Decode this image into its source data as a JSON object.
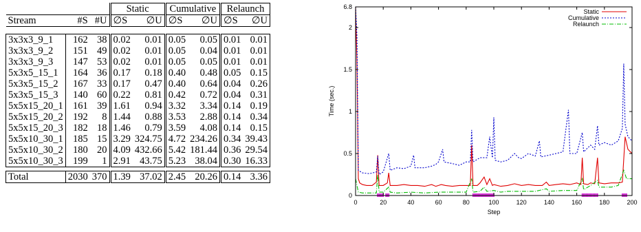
{
  "table": {
    "groups": {
      "static": "Static",
      "cumulative": "Cumulative",
      "relaunch": "Relaunch"
    },
    "columns": [
      "Stream",
      "#S",
      "#U",
      "∅S",
      "∅U",
      "∅S",
      "∅U",
      "∅S",
      "∅U"
    ],
    "rows": [
      [
        "3x3x3_9_1",
        "162",
        "38",
        "0.02",
        "0.01",
        "0.05",
        "0.05",
        "0.01",
        "0.01"
      ],
      [
        "3x3x3_9_2",
        "151",
        "49",
        "0.02",
        "0.01",
        "0.05",
        "0.04",
        "0.01",
        "0.01"
      ],
      [
        "3x3x3_9_3",
        "147",
        "53",
        "0.02",
        "0.01",
        "0.05",
        "0.05",
        "0.01",
        "0.01"
      ],
      [
        "5x3x5_15_1",
        "164",
        "36",
        "0.17",
        "0.18",
        "0.40",
        "0.48",
        "0.05",
        "0.15"
      ],
      [
        "5x3x5_15_2",
        "167",
        "33",
        "0.17",
        "0.47",
        "0.40",
        "0.64",
        "0.04",
        "0.26"
      ],
      [
        "5x3x5_15_3",
        "140",
        "60",
        "0.22",
        "0.81",
        "0.42",
        "0.72",
        "0.04",
        "0.31"
      ],
      [
        "5x5x15_20_1",
        "161",
        "39",
        "1.61",
        "0.94",
        "3.32",
        "3.34",
        "0.14",
        "0.19"
      ],
      [
        "5x5x15_20_2",
        "192",
        "8",
        "1.44",
        "0.88",
        "3.53",
        "2.88",
        "0.14",
        "0.34"
      ],
      [
        "5x5x15_20_3",
        "182",
        "18",
        "1.46",
        "0.79",
        "3.59",
        "4.08",
        "0.14",
        "0.15"
      ],
      [
        "5x5x10_30_1",
        "185",
        "15",
        "3.29",
        "324.75",
        "4.72",
        "234.26",
        "0.34",
        "39.43"
      ],
      [
        "5x5x10_30_2",
        "180",
        "20",
        "4.09",
        "432.66",
        "5.42",
        "181.44",
        "0.36",
        "29.54"
      ],
      [
        "5x5x10_30_3",
        "199",
        "1",
        "2.91",
        "43.75",
        "5.23",
        "38.04",
        "0.30",
        "16.33"
      ]
    ],
    "total": [
      "Total",
      "2030",
      "370",
      "1.39",
      "37.02",
      "2.45",
      "20.26",
      "0.14",
      "3.36"
    ]
  },
  "chart_data": {
    "type": "line",
    "xlabel": "Step",
    "ylabel": "Time (sec.)",
    "xlim": [
      0,
      200
    ],
    "ylim": [
      0,
      6.8
    ],
    "xticks": [
      0,
      20,
      40,
      60,
      80,
      100,
      120,
      140,
      160,
      180,
      200
    ],
    "xtick_labels": [
      "0",
      "20",
      "40",
      "60",
      "80",
      "100",
      "120",
      "140",
      "160",
      "180",
      "200"
    ],
    "yticks": [
      0,
      0.5,
      1,
      1.5,
      2,
      6.8
    ],
    "ytick_labels": [
      "0",
      "0.5",
      "1",
      "1.5",
      "2",
      "6.8"
    ],
    "y_axis_break": true,
    "grid": false,
    "legend_position": "top-right",
    "series": [
      {
        "name": "Static",
        "color": "#e00000",
        "dash": "solid",
        "points": [
          [
            0,
            6.8
          ],
          [
            1,
            1.6
          ],
          [
            2,
            0.2
          ],
          [
            3,
            0.15
          ],
          [
            5,
            0.13
          ],
          [
            8,
            0.12
          ],
          [
            12,
            0.12
          ],
          [
            15,
            0.16
          ],
          [
            16,
            0.48
          ],
          [
            17,
            0.12
          ],
          [
            20,
            0.12
          ],
          [
            23,
            0.15
          ],
          [
            24,
            0.27
          ],
          [
            25,
            0.12
          ],
          [
            30,
            0.12
          ],
          [
            35,
            0.13
          ],
          [
            40,
            0.12
          ],
          [
            45,
            0.12
          ],
          [
            50,
            0.11
          ],
          [
            55,
            0.13
          ],
          [
            58,
            0.11
          ],
          [
            60,
            0.12
          ],
          [
            62,
            0.13
          ],
          [
            65,
            0.12
          ],
          [
            70,
            0.11
          ],
          [
            75,
            0.12
          ],
          [
            80,
            0.12
          ],
          [
            83,
            0.12
          ],
          [
            84,
            0.6
          ],
          [
            85,
            0.12
          ],
          [
            88,
            0.12
          ],
          [
            90,
            0.15
          ],
          [
            93,
            0.22
          ],
          [
            95,
            0.13
          ],
          [
            97,
            0.2
          ],
          [
            99,
            0.12
          ],
          [
            100,
            0.13
          ],
          [
            105,
            0.11
          ],
          [
            110,
            0.12
          ],
          [
            115,
            0.14
          ],
          [
            120,
            0.12
          ],
          [
            125,
            0.13
          ],
          [
            130,
            0.12
          ],
          [
            135,
            0.12
          ],
          [
            138,
            0.16
          ],
          [
            140,
            0.12
          ],
          [
            145,
            0.13
          ],
          [
            150,
            0.14
          ],
          [
            155,
            0.13
          ],
          [
            160,
            0.15
          ],
          [
            163,
            0.13
          ],
          [
            164,
            0.45
          ],
          [
            165,
            0.14
          ],
          [
            168,
            0.13
          ],
          [
            170,
            0.15
          ],
          [
            173,
            0.14
          ],
          [
            175,
            0.45
          ],
          [
            176,
            0.15
          ],
          [
            180,
            0.14
          ],
          [
            185,
            0.15
          ],
          [
            190,
            0.15
          ],
          [
            193,
            0.16
          ],
          [
            195,
            0.7
          ],
          [
            197,
            0.55
          ],
          [
            200,
            0.5
          ]
        ]
      },
      {
        "name": "Cumulative",
        "color": "#0000cc",
        "dash": "2,2",
        "points": [
          [
            0,
            6.8
          ],
          [
            1,
            1.9
          ],
          [
            2,
            0.3
          ],
          [
            5,
            0.27
          ],
          [
            10,
            0.26
          ],
          [
            15,
            0.28
          ],
          [
            16,
            0.47
          ],
          [
            17,
            0.25
          ],
          [
            20,
            0.28
          ],
          [
            24,
            0.5
          ],
          [
            25,
            0.3
          ],
          [
            30,
            0.33
          ],
          [
            35,
            0.32
          ],
          [
            40,
            0.35
          ],
          [
            42,
            0.48
          ],
          [
            43,
            0.33
          ],
          [
            50,
            0.33
          ],
          [
            55,
            0.35
          ],
          [
            58,
            0.37
          ],
          [
            60,
            0.4
          ],
          [
            63,
            0.55
          ],
          [
            64,
            0.4
          ],
          [
            70,
            0.38
          ],
          [
            75,
            0.36
          ],
          [
            80,
            0.4
          ],
          [
            83,
            0.4
          ],
          [
            84,
            0.78
          ],
          [
            85,
            0.4
          ],
          [
            90,
            0.45
          ],
          [
            95,
            0.45
          ],
          [
            97,
            0.7
          ],
          [
            99,
            0.45
          ],
          [
            100,
            0.93
          ],
          [
            101,
            0.42
          ],
          [
            105,
            0.4
          ],
          [
            110,
            0.42
          ],
          [
            115,
            0.5
          ],
          [
            118,
            0.45
          ],
          [
            120,
            0.44
          ],
          [
            125,
            0.5
          ],
          [
            130,
            0.47
          ],
          [
            133,
            0.65
          ],
          [
            134,
            0.46
          ],
          [
            140,
            0.48
          ],
          [
            145,
            0.5
          ],
          [
            150,
            0.52
          ],
          [
            154,
            1.02
          ],
          [
            155,
            0.5
          ],
          [
            160,
            0.5
          ],
          [
            164,
            0.75
          ],
          [
            165,
            0.52
          ],
          [
            170,
            0.6
          ],
          [
            173,
            0.55
          ],
          [
            175,
            0.83
          ],
          [
            176,
            0.6
          ],
          [
            180,
            0.63
          ],
          [
            185,
            0.6
          ],
          [
            190,
            0.65
          ],
          [
            193,
            0.8
          ],
          [
            194,
            1.57
          ],
          [
            195,
            0.85
          ],
          [
            197,
            0.7
          ],
          [
            200,
            0.65
          ]
        ]
      },
      {
        "name": "Relaunch",
        "color": "#00bb00",
        "dash": "6,2,1,2",
        "points": [
          [
            0,
            0.2
          ],
          [
            2,
            0.04
          ],
          [
            5,
            0.03
          ],
          [
            10,
            0.03
          ],
          [
            15,
            0.03
          ],
          [
            16,
            0.25
          ],
          [
            17,
            0.04
          ],
          [
            20,
            0.04
          ],
          [
            24,
            0.1
          ],
          [
            25,
            0.04
          ],
          [
            30,
            0.03
          ],
          [
            40,
            0.04
          ],
          [
            50,
            0.03
          ],
          [
            60,
            0.04
          ],
          [
            70,
            0.04
          ],
          [
            80,
            0.04
          ],
          [
            84,
            0.2
          ],
          [
            85,
            0.04
          ],
          [
            90,
            0.05
          ],
          [
            93,
            0.1
          ],
          [
            95,
            0.05
          ],
          [
            100,
            0.06
          ],
          [
            105,
            0.04
          ],
          [
            110,
            0.05
          ],
          [
            120,
            0.05
          ],
          [
            130,
            0.05
          ],
          [
            138,
            0.08
          ],
          [
            140,
            0.05
          ],
          [
            150,
            0.06
          ],
          [
            160,
            0.06
          ],
          [
            164,
            0.2
          ],
          [
            165,
            0.07
          ],
          [
            170,
            0.12
          ],
          [
            175,
            0.18
          ],
          [
            176,
            0.1
          ],
          [
            180,
            0.1
          ],
          [
            185,
            0.1
          ],
          [
            190,
            0.12
          ],
          [
            194,
            0.3
          ],
          [
            196,
            0.2
          ],
          [
            200,
            0.2
          ]
        ]
      }
    ],
    "markers": {
      "color": "#cc00cc",
      "x": [
        16,
        17,
        18,
        19,
        20,
        22,
        23,
        24,
        85,
        86,
        87,
        88,
        89,
        90,
        91,
        92,
        93,
        94,
        95,
        96,
        97,
        98,
        99,
        100,
        164,
        165,
        166,
        167,
        168,
        169,
        170,
        171,
        172,
        173,
        174,
        175,
        193,
        194,
        195,
        196
      ]
    }
  }
}
